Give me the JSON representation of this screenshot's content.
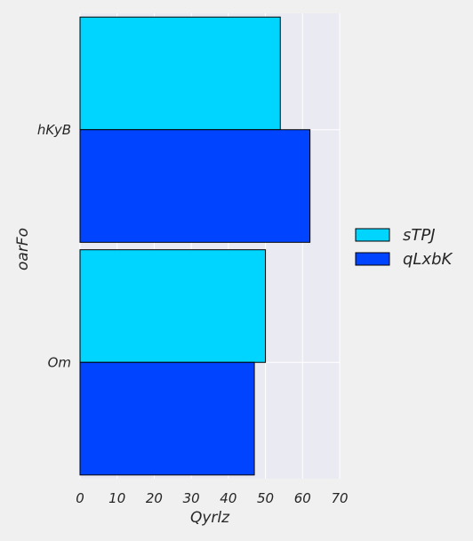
{
  "chart_data": {
    "type": "bar",
    "orientation": "horizontal",
    "categories": [
      "hKyB",
      "Om"
    ],
    "series": [
      {
        "name": "sTPJ",
        "values": [
          54,
          50
        ],
        "color": "#00d5ff"
      },
      {
        "name": "qLxbK",
        "values": [
          62,
          47
        ],
        "color": "#0044ff"
      }
    ],
    "xlabel": "Qyrlz",
    "ylabel": "oarFo",
    "xlim": [
      0,
      70
    ],
    "xticks": [
      0,
      10,
      20,
      30,
      40,
      50,
      60,
      70
    ],
    "grid": true,
    "legend_position": "right",
    "plot_background": "#eaeaf2",
    "grid_color": "#ffffff"
  }
}
